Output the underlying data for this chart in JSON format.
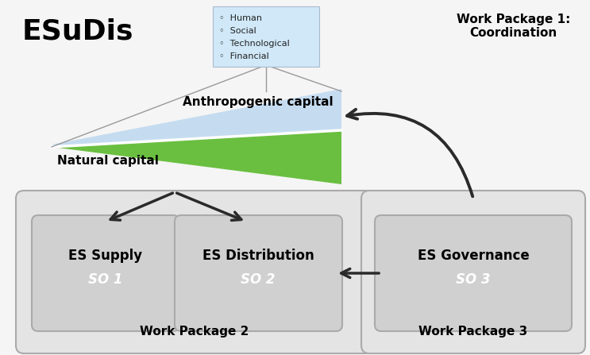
{
  "title": "ESuDis",
  "wp1_text": "Work Package 1:\nCoordination",
  "wp2_text": "Work Package 2",
  "wp3_text": "Work Package 3",
  "natural_capital_text": "Natural capital",
  "anthropogenic_capital_text": "Anthropogenic capital",
  "capital_list": [
    "◦  Human",
    "◦  Social",
    "◦  Technological",
    "◦  Financial"
  ],
  "es_supply_text": "ES Supply",
  "es_supply_so": "SO 1",
  "es_dist_text": "ES Distribution",
  "es_dist_so": "SO 2",
  "es_gov_text": "ES Governance",
  "es_gov_so": "SO 3",
  "bg_color": "#ffffff",
  "outer_facecolor": "#f5f5f5",
  "green_color": "#6abf40",
  "blue_color": "#c5dcf0",
  "wp2_facecolor": "#e4e4e4",
  "wp3_facecolor": "#e4e4e4",
  "inner_box_facecolor": "#d0d0d0",
  "arrow_color": "#2a2a2a",
  "capital_box_color": "#d0e8f8",
  "box_edge_color": "#aaaaaa"
}
